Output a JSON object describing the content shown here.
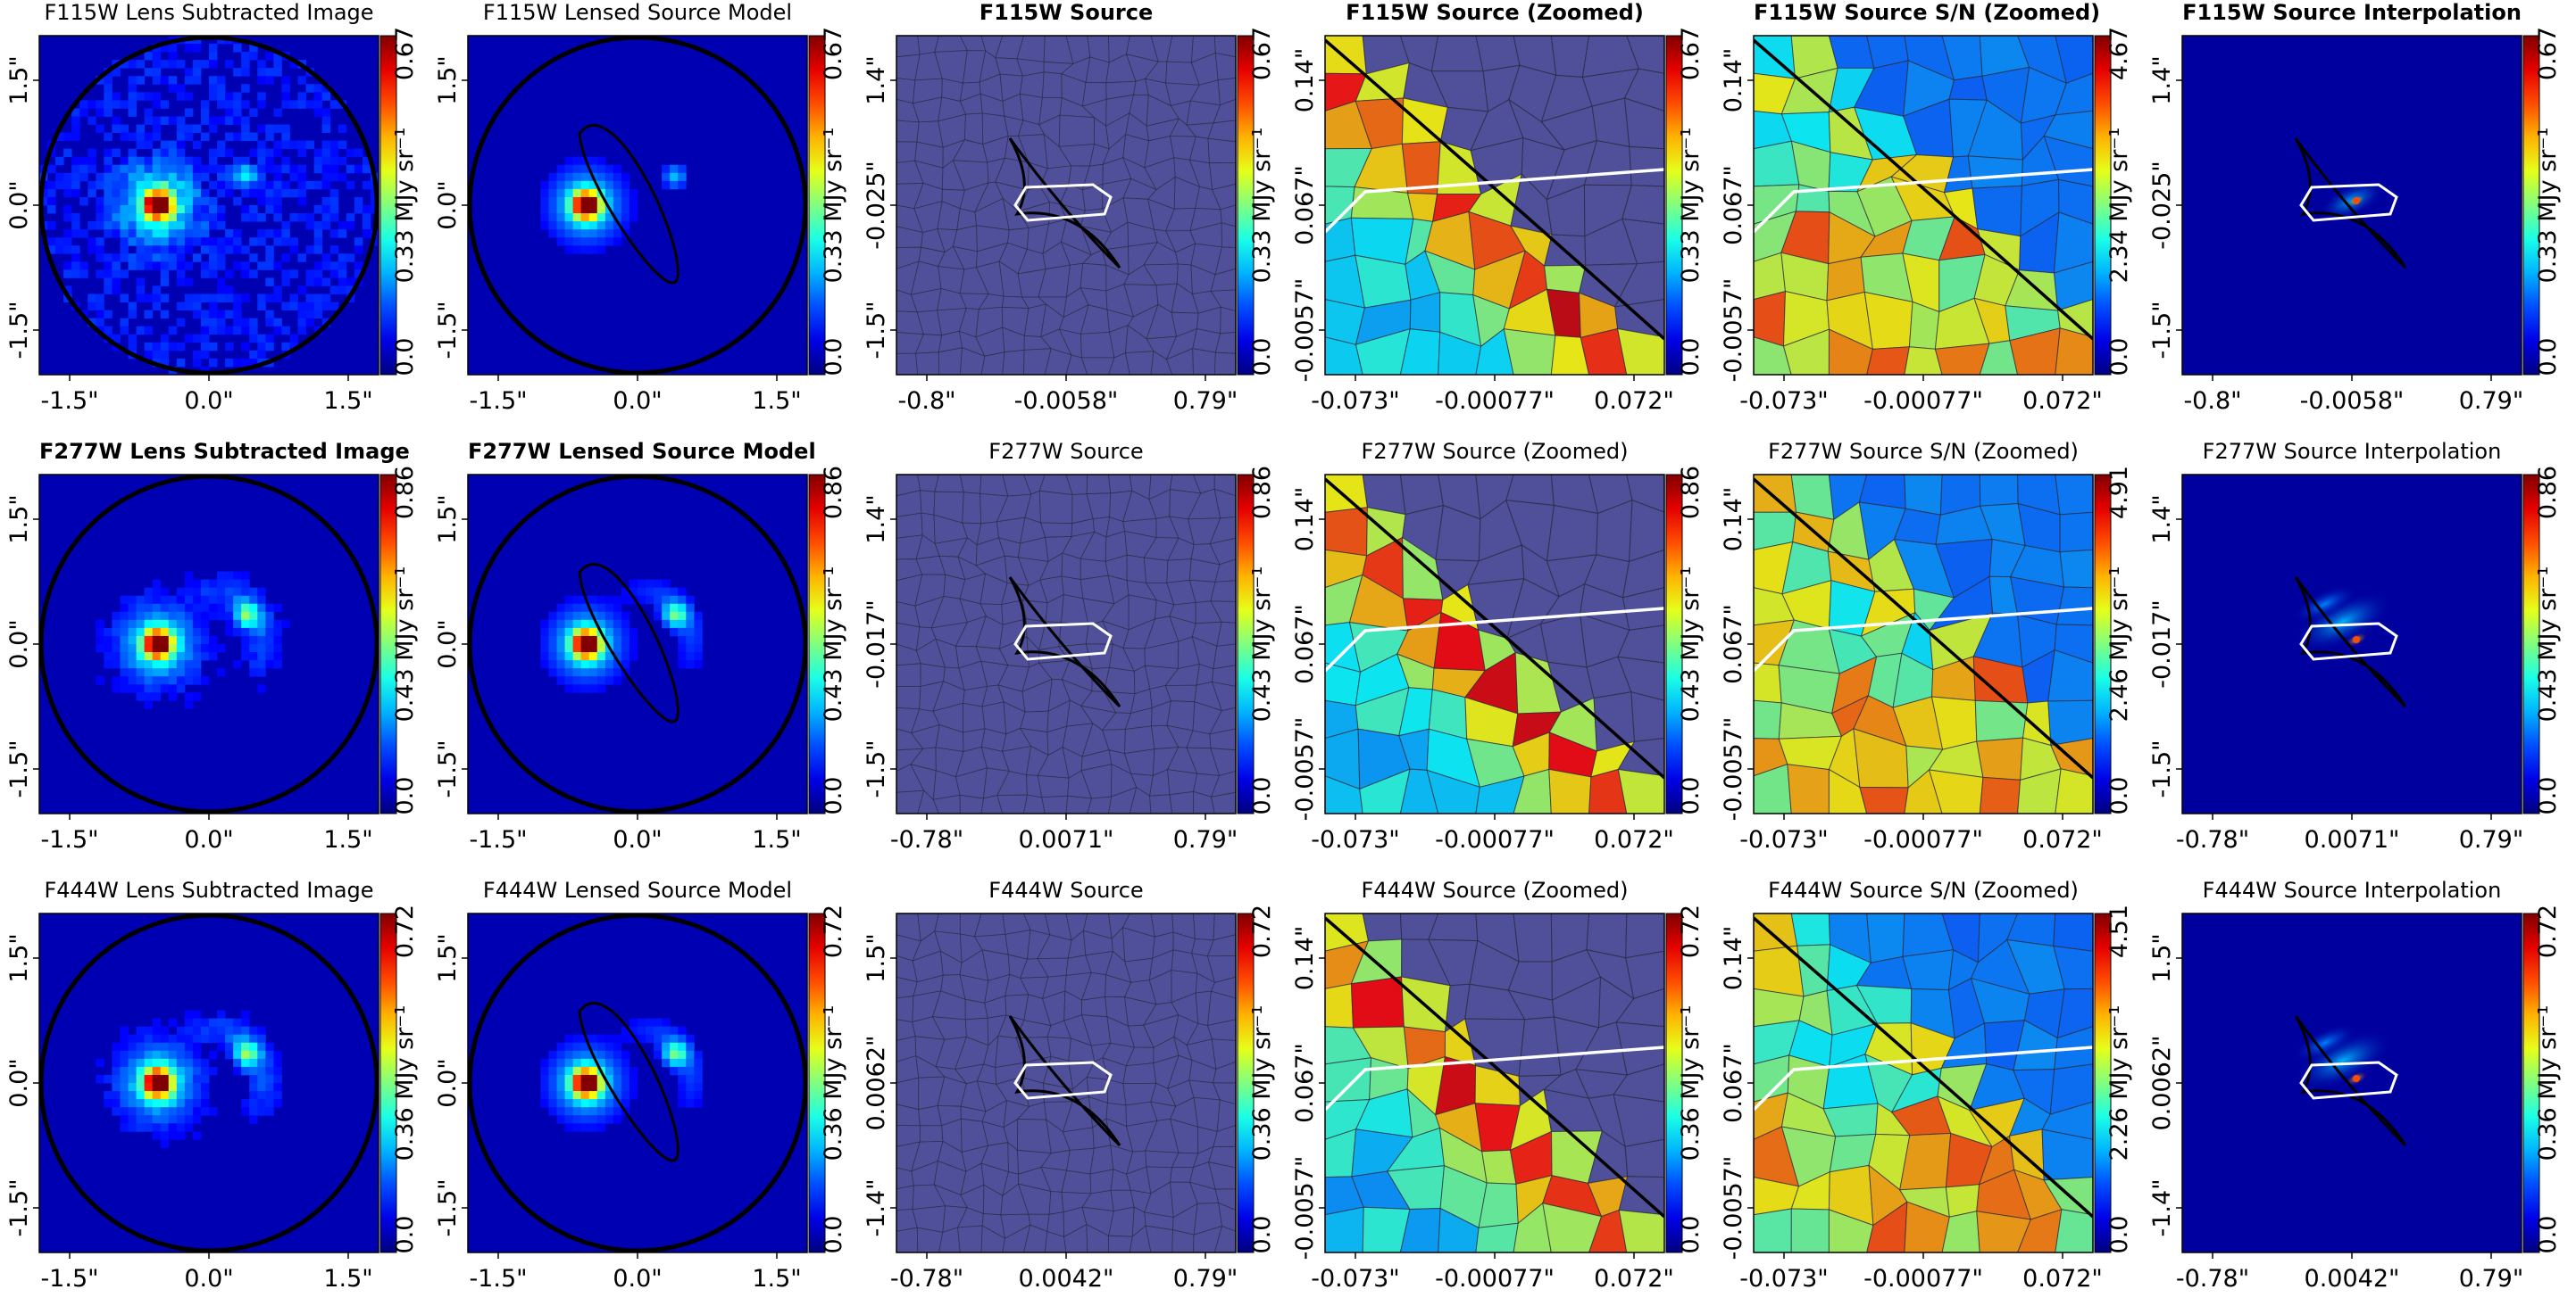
{
  "figure": {
    "rows": [
      {
        "filter": "F115W",
        "panels": [
          {
            "kind": "image",
            "title": "F115W Lens Subtracted Image",
            "bold": false,
            "xticks": [
              "-1.5\"",
              "0.0\"",
              "1.5\""
            ],
            "yticks": [
              "1.5\"",
              "0.0\"",
              "-1.5\""
            ],
            "cbar": {
              "min": "0.0",
              "mid": "0.33",
              "max": "0.67",
              "unit": "MJy sr⁻¹",
              "colormap": "jet"
            }
          },
          {
            "kind": "model",
            "title": "F115W Lensed Source Model",
            "bold": false,
            "xticks": [
              "-1.5\"",
              "0.0\"",
              "1.5\""
            ],
            "yticks": [
              "1.5\"",
              "0.0\"",
              "-1.5\""
            ],
            "cbar": {
              "min": "0.0",
              "mid": "0.33",
              "max": "0.67",
              "unit": "MJy sr⁻¹",
              "colormap": "jet"
            }
          },
          {
            "kind": "source",
            "title": "F115W Source",
            "bold": true,
            "xticks": [
              "-0.8\"",
              "-0.0058\"",
              "0.79\""
            ],
            "yticks": [
              "1.4\"",
              "-0.025\"",
              "-1.5\""
            ],
            "cbar": {
              "min": "0.0",
              "mid": "0.33",
              "max": "0.67",
              "unit": "MJy sr⁻¹",
              "colormap": "jet"
            }
          },
          {
            "kind": "zoom",
            "title": "F115W Source (Zoomed)",
            "bold": true,
            "xticks": [
              "-0.073\"",
              "-0.00077\"",
              "0.072\""
            ],
            "yticks": [
              "0.14\"",
              "0.067\"",
              "-0.0057\""
            ],
            "cbar": {
              "min": "0.0",
              "mid": "0.33",
              "max": "0.67",
              "unit": "MJy sr⁻¹",
              "colormap": "jet"
            }
          },
          {
            "kind": "sn",
            "title": "F115W Source S/N (Zoomed)",
            "bold": true,
            "xticks": [
              "-0.073\"",
              "-0.00077\"",
              "0.072\""
            ],
            "yticks": [
              "0.14\"",
              "0.067\"",
              "-0.0057\""
            ],
            "cbar": {
              "min": "0.0",
              "mid": "2.34",
              "max": "4.67",
              "unit": "MJy sr⁻¹",
              "colormap": "jet"
            }
          },
          {
            "kind": "interp",
            "title": "F115W Source Interpolation",
            "bold": true,
            "xticks": [
              "-0.8\"",
              "-0.0058\"",
              "0.79\""
            ],
            "yticks": [
              "1.4\"",
              "-0.025\"",
              "-1.5\""
            ],
            "cbar": {
              "min": "0.0",
              "mid": "0.33",
              "max": "0.67",
              "unit": "MJy sr⁻¹",
              "colormap": "jet"
            }
          }
        ]
      },
      {
        "filter": "F277W",
        "panels": [
          {
            "kind": "image",
            "title": "F277W Lens Subtracted Image",
            "bold": true,
            "xticks": [
              "-1.5\"",
              "0.0\"",
              "1.5\""
            ],
            "yticks": [
              "1.5\"",
              "0.0\"",
              "-1.5\""
            ],
            "cbar": {
              "min": "0.0",
              "mid": "0.43",
              "max": "0.86",
              "unit": "MJy sr⁻¹",
              "colormap": "jet"
            }
          },
          {
            "kind": "model",
            "title": "F277W Lensed Source Model",
            "bold": true,
            "xticks": [
              "-1.5\"",
              "0.0\"",
              "1.5\""
            ],
            "yticks": [
              "1.5\"",
              "0.0\"",
              "-1.5\""
            ],
            "cbar": {
              "min": "0.0",
              "mid": "0.43",
              "max": "0.86",
              "unit": "MJy sr⁻¹",
              "colormap": "jet"
            }
          },
          {
            "kind": "source",
            "title": "F277W Source",
            "bold": false,
            "xticks": [
              "-0.78\"",
              "0.0071\"",
              "0.79\""
            ],
            "yticks": [
              "1.4\"",
              "-0.017\"",
              "-1.5\""
            ],
            "cbar": {
              "min": "0.0",
              "mid": "0.43",
              "max": "0.86",
              "unit": "MJy sr⁻¹",
              "colormap": "jet"
            }
          },
          {
            "kind": "zoom",
            "title": "F277W Source (Zoomed)",
            "bold": false,
            "xticks": [
              "-0.073\"",
              "-0.00077\"",
              "0.072\""
            ],
            "yticks": [
              "0.14\"",
              "0.067\"",
              "-0.0057\""
            ],
            "cbar": {
              "min": "0.0",
              "mid": "0.43",
              "max": "0.86",
              "unit": "MJy sr⁻¹",
              "colormap": "jet"
            }
          },
          {
            "kind": "sn",
            "title": "F277W Source S/N (Zoomed)",
            "bold": false,
            "xticks": [
              "-0.073\"",
              "-0.00077\"",
              "0.072\""
            ],
            "yticks": [
              "0.14\"",
              "0.067\"",
              "-0.0057\""
            ],
            "cbar": {
              "min": "0.0",
              "mid": "2.46",
              "max": "4.91",
              "unit": "MJy sr⁻¹",
              "colormap": "jet"
            }
          },
          {
            "kind": "interp",
            "title": "F277W Source Interpolation",
            "bold": false,
            "xticks": [
              "-0.78\"",
              "0.0071\"",
              "0.79\""
            ],
            "yticks": [
              "1.4\"",
              "-0.017\"",
              "-1.5\""
            ],
            "cbar": {
              "min": "0.0",
              "mid": "0.43",
              "max": "0.86",
              "unit": "MJy sr⁻¹",
              "colormap": "jet"
            }
          }
        ]
      },
      {
        "filter": "F444W",
        "panels": [
          {
            "kind": "image",
            "title": "F444W Lens Subtracted Image",
            "bold": false,
            "xticks": [
              "-1.5\"",
              "0.0\"",
              "1.5\""
            ],
            "yticks": [
              "1.5\"",
              "0.0\"",
              "-1.5\""
            ],
            "cbar": {
              "min": "0.0",
              "mid": "0.36",
              "max": "0.72",
              "unit": "MJy sr⁻¹",
              "colormap": "jet"
            }
          },
          {
            "kind": "model",
            "title": "F444W Lensed Source Model",
            "bold": false,
            "xticks": [
              "-1.5\"",
              "0.0\"",
              "1.5\""
            ],
            "yticks": [
              "1.5\"",
              "0.0\"",
              "-1.5\""
            ],
            "cbar": {
              "min": "0.0",
              "mid": "0.36",
              "max": "0.72",
              "unit": "MJy sr⁻¹",
              "colormap": "jet"
            }
          },
          {
            "kind": "source",
            "title": "F444W Source",
            "bold": false,
            "xticks": [
              "-0.78\"",
              "0.0042\"",
              "0.79\""
            ],
            "yticks": [
              "1.5\"",
              "0.0062\"",
              "-1.4\""
            ],
            "cbar": {
              "min": "0.0",
              "mid": "0.36",
              "max": "0.72",
              "unit": "MJy sr⁻¹",
              "colormap": "jet"
            }
          },
          {
            "kind": "zoom",
            "title": "F444W Source (Zoomed)",
            "bold": false,
            "xticks": [
              "-0.073\"",
              "-0.00077\"",
              "0.072\""
            ],
            "yticks": [
              "0.14\"",
              "0.067\"",
              "-0.0057\""
            ],
            "cbar": {
              "min": "0.0",
              "mid": "0.36",
              "max": "0.72",
              "unit": "MJy sr⁻¹",
              "colormap": "jet"
            }
          },
          {
            "kind": "sn",
            "title": "F444W Source S/N (Zoomed)",
            "bold": false,
            "xticks": [
              "-0.073\"",
              "-0.00077\"",
              "0.072\""
            ],
            "yticks": [
              "0.14\"",
              "0.067\"",
              "-0.0057\""
            ],
            "cbar": {
              "min": "0.0",
              "mid": "2.26",
              "max": "4.51",
              "unit": "MJy sr⁻¹",
              "colormap": "jet"
            }
          },
          {
            "kind": "interp",
            "title": "F444W Source Interpolation",
            "bold": false,
            "xticks": [
              "-0.78\"",
              "0.0042\"",
              "0.79\""
            ],
            "yticks": [
              "1.5\"",
              "0.0062\"",
              "-1.4\""
            ],
            "cbar": {
              "min": "0.0",
              "mid": "0.36",
              "max": "0.72",
              "unit": "MJy sr⁻¹",
              "colormap": "jet"
            }
          }
        ]
      }
    ]
  },
  "chart_data": {
    "type": "heatmap",
    "layout": "3 rows (F115W, F277W, F444W) x 6 panels",
    "colormap": "jet",
    "grid": false,
    "source_background_color": "#4f4f9a",
    "critical_curve_color": "#000000",
    "caustic_color": "#ffffff"
  }
}
